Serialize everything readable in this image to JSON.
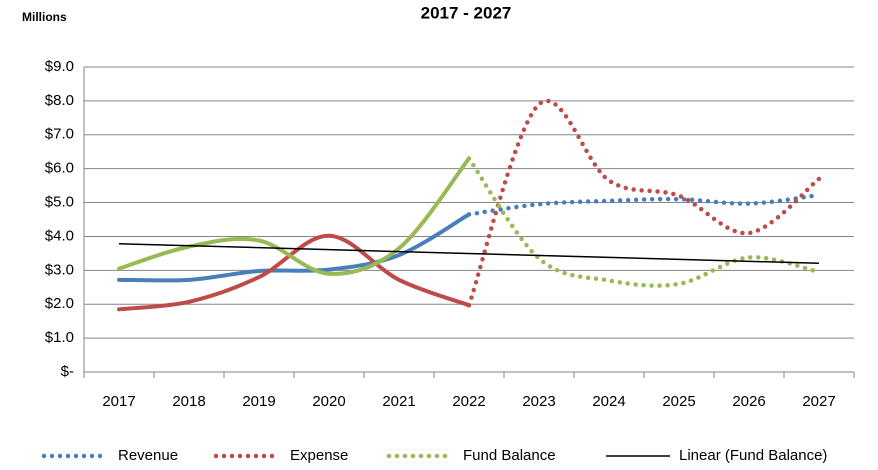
{
  "chart_data": {
    "type": "line",
    "title": "2017 - 2027",
    "unit_label": "Millions",
    "categories": [
      "2017",
      "2018",
      "2019",
      "2020",
      "2021",
      "2022",
      "2023",
      "2024",
      "2025",
      "2026",
      "2027"
    ],
    "dotted_from": "2022",
    "smooth": true,
    "series": [
      {
        "name": "Revenue",
        "color": "#4a7ebb",
        "values": [
          2.72,
          2.72,
          2.98,
          3.02,
          3.45,
          4.65,
          4.95,
          5.05,
          5.1,
          4.97,
          5.22
        ]
      },
      {
        "name": "Expense",
        "color": "#be4b48",
        "values": [
          1.85,
          2.07,
          2.8,
          4.02,
          2.72,
          1.97,
          7.9,
          5.65,
          5.2,
          4.1,
          5.7
        ]
      },
      {
        "name": "Fund Balance",
        "color": "#98b954",
        "values": [
          3.05,
          3.7,
          3.88,
          2.9,
          3.65,
          6.3,
          3.35,
          2.7,
          2.6,
          3.38,
          2.95
        ]
      }
    ],
    "trendline": {
      "name": "Linear (Fund Balance)",
      "of_series": "Fund Balance",
      "color": "#000000"
    },
    "ylim": [
      0,
      9
    ],
    "yticks": [
      {
        "value": 0,
        "label": "$-"
      },
      {
        "value": 1,
        "label": "$1.0"
      },
      {
        "value": 2,
        "label": "$2.0"
      },
      {
        "value": 3,
        "label": "$3.0"
      },
      {
        "value": 4,
        "label": "$4.0"
      },
      {
        "value": 5,
        "label": "$5.0"
      },
      {
        "value": 6,
        "label": "$6.0"
      },
      {
        "value": 7,
        "label": "$7.0"
      },
      {
        "value": 8,
        "label": "$8.0"
      },
      {
        "value": 9,
        "label": "$9.0"
      }
    ],
    "grid": true,
    "legend": "bottom"
  }
}
